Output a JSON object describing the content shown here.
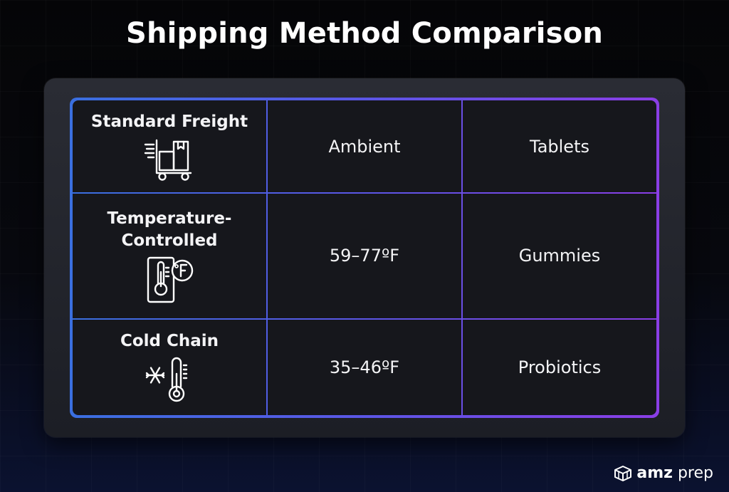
{
  "title": "Shipping Method Comparison",
  "rows": [
    {
      "method": "Standard Freight",
      "icon": "hand-truck-icon",
      "temperature": "Ambient",
      "product": "Tablets"
    },
    {
      "method": "Temperature-Controlled",
      "icon": "thermometer-fahrenheit-icon",
      "temperature": "59–77ºF",
      "product": "Gummies"
    },
    {
      "method": "Cold Chain",
      "icon": "snowflake-thermometer-icon",
      "temperature": "35–46ºF",
      "product": "Probiotics"
    }
  ],
  "logo": {
    "brand": "amz",
    "suffix": "prep"
  },
  "colors": {
    "accent_blue": "#3a6fe0",
    "accent_purple": "#8a3ee6",
    "background": "#06070b"
  }
}
